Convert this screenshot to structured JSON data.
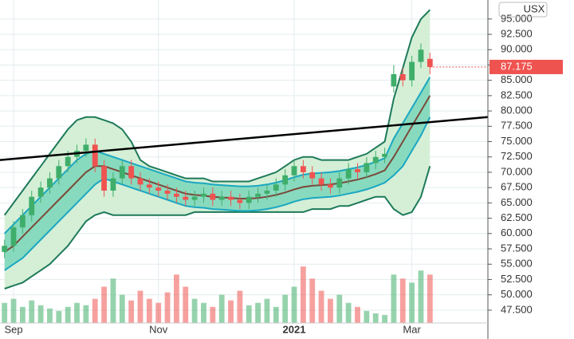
{
  "chart_data": {
    "type": "candlestick",
    "currency": "USX",
    "x": [
      null,
      "Sep",
      null,
      null,
      null,
      null,
      null,
      null,
      null,
      null,
      null,
      null,
      null,
      null,
      null,
      null,
      null,
      "Nov",
      null,
      null,
      null,
      null,
      null,
      null,
      null,
      null,
      null,
      null,
      null,
      null,
      null,
      null,
      "2021",
      null,
      null,
      null,
      null,
      null,
      null,
      null,
      null,
      null,
      null,
      null,
      null,
      "Mar",
      null,
      null
    ],
    "open": [
      57,
      58,
      61,
      63,
      66,
      67.5,
      69,
      71,
      72.5,
      73.5,
      74.5,
      71,
      67,
      69,
      71,
      69,
      68,
      67.5,
      67,
      66.5,
      66,
      65.5,
      66,
      66.5,
      65.5,
      66,
      65.5,
      65,
      66,
      66.5,
      67,
      68,
      69.5,
      71,
      70,
      69,
      68,
      67.5,
      69,
      70.5,
      70,
      71.5,
      72.5,
      84,
      86,
      85,
      88,
      88.5
    ],
    "high": [
      59,
      62,
      64,
      67,
      68.5,
      70,
      72,
      73.5,
      74.5,
      75.5,
      75.5,
      72,
      70,
      72,
      72,
      70,
      69,
      68.5,
      68,
      67.5,
      67,
      67,
      67.5,
      67.5,
      67,
      67,
      66.5,
      67,
      67.5,
      68,
      69,
      70.5,
      72,
      72,
      71,
      70,
      69,
      70,
      71.5,
      71.5,
      72.5,
      73.5,
      74,
      87.5,
      87,
      89,
      91,
      89.5
    ],
    "low": [
      56,
      57,
      60,
      62,
      65,
      66.5,
      68,
      70,
      71.5,
      72.5,
      70,
      66,
      66,
      68,
      68,
      67,
      66.5,
      66,
      65.5,
      65,
      64.5,
      64.5,
      65,
      64.5,
      64.5,
      64.5,
      64,
      64,
      65,
      65.5,
      66,
      67,
      68.5,
      69,
      68,
      67,
      66.5,
      66.5,
      68,
      69,
      69,
      70.5,
      71.5,
      83,
      84,
      84,
      87,
      86
    ],
    "close": [
      58,
      61,
      63,
      66,
      67.5,
      69,
      71,
      72.5,
      73.5,
      74.5,
      71,
      67,
      69,
      71,
      69,
      68,
      67.5,
      67,
      66.5,
      66,
      65.5,
      66,
      66.5,
      65.5,
      66,
      65.5,
      65,
      66,
      66.5,
      67,
      68,
      69.5,
      71,
      70,
      69,
      68,
      67.5,
      69,
      70.5,
      70,
      71.5,
      72.5,
      73,
      86,
      85,
      88,
      90,
      87.175
    ],
    "up_color": "#3fae6a",
    "down_color": "#ef5350",
    "volume": {
      "values": [
        25,
        30,
        20,
        28,
        22,
        18,
        15,
        20,
        25,
        22,
        30,
        45,
        55,
        35,
        28,
        40,
        30,
        25,
        38,
        60,
        45,
        30,
        25,
        20,
        35,
        28,
        40,
        22,
        25,
        30,
        20,
        35,
        45,
        70,
        55,
        40,
        30,
        35,
        25,
        20,
        15,
        12,
        10,
        60,
        55,
        50,
        65,
        60
      ],
      "ylim": [
        0,
        400
      ]
    },
    "bands": {
      "outer_upper": [
        63,
        65,
        67,
        69,
        71,
        73,
        75,
        77,
        78.5,
        79,
        79,
        78.5,
        78,
        77,
        75,
        72,
        71,
        70.5,
        70,
        69.5,
        69,
        69,
        69,
        68.5,
        68.5,
        68.5,
        68.5,
        68.5,
        69,
        69.5,
        70,
        71,
        72,
        72.5,
        72.5,
        72,
        72,
        72,
        72,
        72.5,
        73,
        74,
        75,
        82,
        87,
        92,
        95,
        96.5
      ],
      "inner_upper": [
        60,
        61.5,
        63,
        64.5,
        66,
        67.5,
        69,
        70.5,
        72,
        73,
        73.5,
        73,
        72.5,
        72,
        71.5,
        71,
        70.5,
        70,
        69.5,
        69,
        68.5,
        68.3,
        68.2,
        68,
        67.9,
        67.8,
        67.7,
        67.7,
        67.8,
        68,
        68.3,
        68.7,
        69.2,
        69.6,
        69.8,
        69.9,
        70,
        70.2,
        70.5,
        70.8,
        71.2,
        71.7,
        72.3,
        75.5,
        78,
        80.5,
        83,
        85.5
      ],
      "middle": [
        57,
        58,
        59.5,
        61,
        62.5,
        64,
        65.5,
        67,
        68.5,
        70,
        71,
        71,
        70.5,
        70,
        69.5,
        69,
        68.5,
        68,
        67.5,
        67,
        66.5,
        66.3,
        66.2,
        66,
        65.9,
        65.8,
        65.7,
        65.7,
        65.8,
        66,
        66.3,
        66.7,
        67.2,
        67.6,
        67.8,
        67.9,
        68,
        68.2,
        68.5,
        68.8,
        69.2,
        69.7,
        70.3,
        72.5,
        75,
        77.5,
        80,
        82.5
      ],
      "inner_lower": [
        54,
        55,
        56,
        57.5,
        59,
        60.5,
        62,
        63.5,
        65,
        66.5,
        68,
        69,
        68.5,
        68,
        67.5,
        67,
        66.5,
        66,
        65.5,
        65,
        64.5,
        64.3,
        64.2,
        64,
        63.9,
        63.8,
        63.7,
        63.7,
        63.8,
        64,
        64.3,
        64.7,
        65.2,
        65.6,
        65.8,
        65.9,
        66,
        66.2,
        66.5,
        66.8,
        67.2,
        67.7,
        68.3,
        69.5,
        71,
        73.5,
        76,
        79
      ],
      "outer_lower": [
        51,
        51.5,
        52,
        53,
        54,
        55,
        56.5,
        58,
        60,
        62,
        63,
        63.5,
        63,
        63,
        63,
        63,
        63,
        63,
        63,
        63,
        63,
        63.5,
        63.5,
        63.5,
        63.5,
        63.5,
        63.5,
        63.5,
        63.5,
        63.5,
        63.5,
        63.5,
        63.5,
        63.5,
        64,
        64,
        64,
        64.5,
        64.5,
        65,
        65.5,
        66,
        66,
        64,
        63,
        63.5,
        66,
        71
      ],
      "outer_color": "#1e7a5a",
      "outer_fill": "#d4efd6",
      "inner_color": "#1aa7c2",
      "inner_fill": "#6fd3b5",
      "middle_color": "#7a4a3a"
    },
    "trendline": {
      "values": [
        72,
        79
      ],
      "color": "#000000"
    },
    "ylim": [
      45.4,
      98.1
    ],
    "yticks": [
      {
        "value": 47.5,
        "label": "47.500"
      },
      {
        "value": 50,
        "label": "50.000"
      },
      {
        "value": 52.5,
        "label": "52.500"
      },
      {
        "value": 55,
        "label": "55.000"
      },
      {
        "value": 57.5,
        "label": "57.500"
      },
      {
        "value": 60,
        "label": "60.000"
      },
      {
        "value": 62.5,
        "label": "62.500"
      },
      {
        "value": 65,
        "label": "65.000"
      },
      {
        "value": 67.5,
        "label": "67.500"
      },
      {
        "value": 70,
        "label": "70.000"
      },
      {
        "value": 72.5,
        "label": "72.500"
      },
      {
        "value": 75,
        "label": "75.000"
      },
      {
        "value": 77.5,
        "label": "77.500"
      },
      {
        "value": 80,
        "label": "80.000"
      },
      {
        "value": 82.5,
        "label": "82.500"
      },
      {
        "value": 85,
        "label": "85.000"
      },
      {
        "value": 87.5,
        "label": "87.500"
      },
      {
        "value": 90,
        "label": "90.000"
      },
      {
        "value": 92.5,
        "label": "92.500"
      },
      {
        "value": 95,
        "label": "95.000"
      }
    ],
    "grid": true
  }
}
